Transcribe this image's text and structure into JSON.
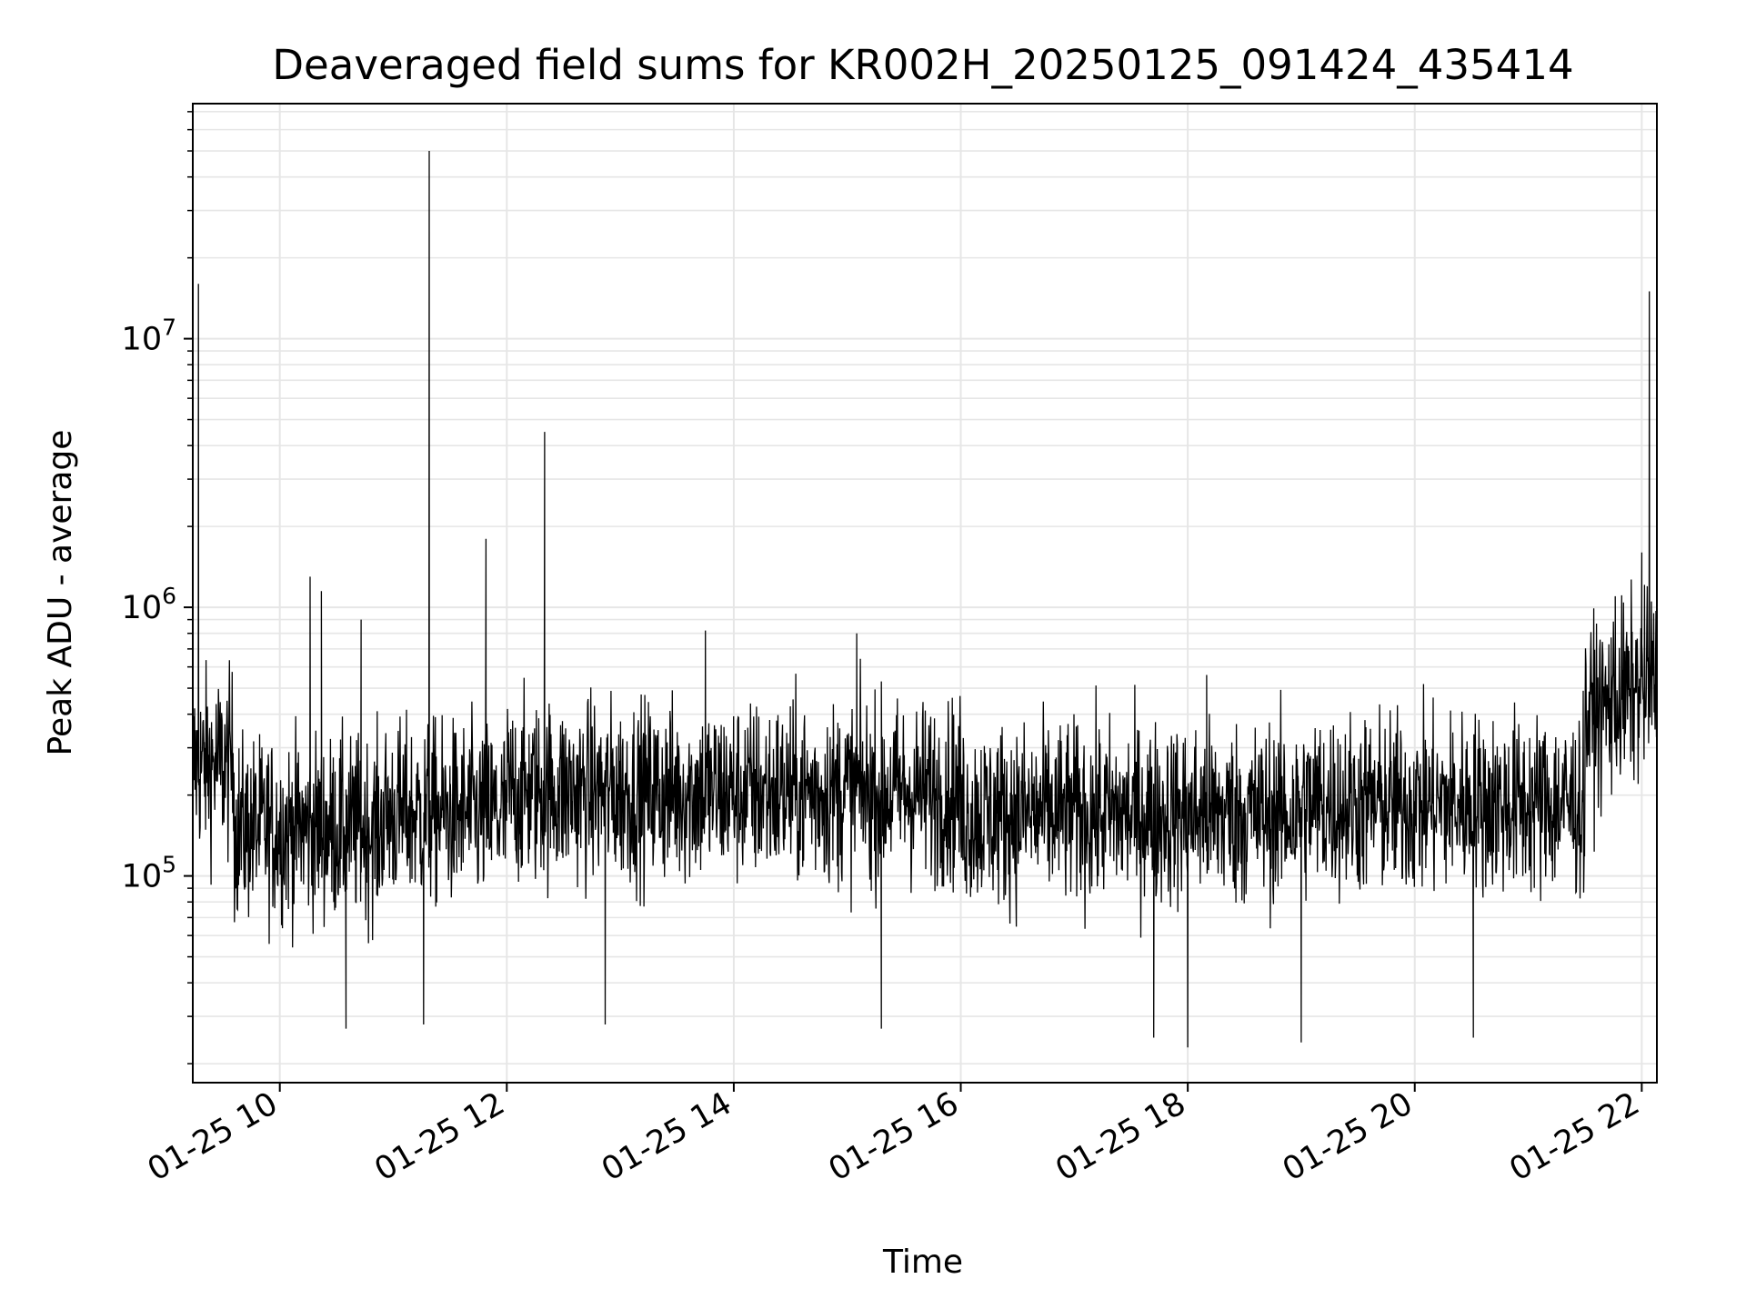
{
  "chart_data": {
    "type": "line",
    "title": "Deaveraged field sums for KR002H_20250125_091424_435414",
    "xlabel": "Time",
    "ylabel": "Peak ADU - average",
    "x_axis": {
      "kind": "time",
      "range": [
        "2025-01-25T09:14",
        "2025-01-25T22:08"
      ],
      "ticks": [
        {
          "t": "2025-01-25T10:00",
          "label": "01-25 10"
        },
        {
          "t": "2025-01-25T12:00",
          "label": "01-25 12"
        },
        {
          "t": "2025-01-25T14:00",
          "label": "01-25 14"
        },
        {
          "t": "2025-01-25T16:00",
          "label": "01-25 16"
        },
        {
          "t": "2025-01-25T18:00",
          "label": "01-25 18"
        },
        {
          "t": "2025-01-25T20:00",
          "label": "01-25 20"
        },
        {
          "t": "2025-01-25T22:00",
          "label": "01-25 22"
        }
      ]
    },
    "y_axis": {
      "scale": "log",
      "range": [
        17000,
        75000000
      ],
      "ticks": [
        {
          "value": 100000,
          "base": "10",
          "exp": "5"
        },
        {
          "value": 1000000,
          "base": "10",
          "exp": "6"
        },
        {
          "value": 10000000,
          "base": "10",
          "exp": "7"
        }
      ]
    },
    "grid": true,
    "line_color": "#000000",
    "grid_color": "#e6e6e6",
    "series": [
      {
        "values_description_note": "",
        "points": [
          [
            "2025-01-25T09:14",
            500000
          ],
          [
            "2025-01-25T09:17",
            16000000
          ],
          [
            "2025-01-25T09:20",
            220000
          ],
          [
            "2025-01-25T09:35",
            180000
          ],
          [
            "2025-01-25T10:00",
            150000
          ],
          [
            "2025-01-25T10:16",
            1300000
          ],
          [
            "2025-01-25T10:22",
            1150000
          ],
          [
            "2025-01-25T10:35",
            27000
          ],
          [
            "2025-01-25T10:43",
            900000
          ],
          [
            "2025-01-25T11:00",
            160000
          ],
          [
            "2025-01-25T11:16",
            28000
          ],
          [
            "2025-01-25T11:19",
            50000000
          ],
          [
            "2025-01-25T11:30",
            200000
          ],
          [
            "2025-01-25T11:49",
            1800000
          ],
          [
            "2025-01-25T12:00",
            200000
          ],
          [
            "2025-01-25T12:20",
            4500000
          ],
          [
            "2025-01-25T12:52",
            28000
          ],
          [
            "2025-01-25T13:45",
            820000
          ],
          [
            "2025-01-25T14:00",
            200000
          ],
          [
            "2025-01-25T15:05",
            800000
          ],
          [
            "2025-01-25T15:18",
            27000
          ],
          [
            "2025-01-25T16:00",
            200000
          ],
          [
            "2025-01-25T17:42",
            25000
          ],
          [
            "2025-01-25T18:00",
            23000
          ],
          [
            "2025-01-25T18:10",
            560000
          ],
          [
            "2025-01-25T19:00",
            24000
          ],
          [
            "2025-01-25T20:00",
            190000
          ],
          [
            "2025-01-25T20:31",
            25000
          ],
          [
            "2025-01-25T21:30",
            280000
          ],
          [
            "2025-01-25T21:46",
            1100000
          ],
          [
            "2025-01-25T22:00",
            1600000
          ],
          [
            "2025-01-25T22:04",
            15000000
          ],
          [
            "2025-01-25T22:08",
            400000
          ]
        ]
      }
    ]
  }
}
